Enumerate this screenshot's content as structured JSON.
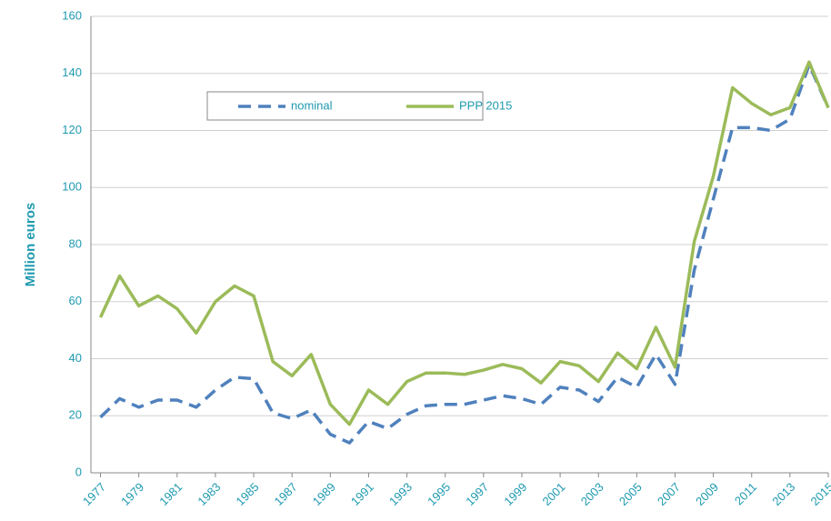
{
  "chart_data": {
    "type": "line",
    "y_label": "Million euros",
    "x": [
      1977,
      1978,
      1979,
      1980,
      1981,
      1982,
      1983,
      1984,
      1985,
      1986,
      1987,
      1988,
      1989,
      1990,
      1991,
      1992,
      1993,
      1994,
      1995,
      1996,
      1997,
      1998,
      1999,
      2000,
      2001,
      2002,
      2003,
      2004,
      2005,
      2006,
      2007,
      2008,
      2009,
      2010,
      2011,
      2012,
      2013,
      2014,
      2015
    ],
    "series": [
      {
        "name": "nominal",
        "color": "#4f81bd",
        "dashed": true,
        "values": [
          19.5,
          26,
          23,
          25.5,
          25.5,
          23,
          29,
          33.5,
          33,
          21,
          19,
          22,
          13.5,
          10.5,
          18,
          15.5,
          20.5,
          23.5,
          24,
          24,
          25.5,
          27,
          26,
          24,
          30,
          29,
          25,
          33.5,
          30,
          41.5,
          31,
          71,
          96,
          121,
          121,
          120,
          124,
          143,
          128
        ]
      },
      {
        "name": "PPP 2015",
        "color": "#9bbb59",
        "dashed": false,
        "values": [
          54.5,
          69,
          58.5,
          62,
          57.5,
          49,
          60,
          65.5,
          62,
          39,
          34,
          41.5,
          24,
          17,
          29,
          24,
          32,
          35,
          35,
          34.5,
          36,
          38,
          36.5,
          31.5,
          39,
          37.5,
          32,
          42,
          36.5,
          51,
          37,
          81,
          104,
          135,
          129.5,
          125.5,
          128,
          144,
          128
        ]
      }
    ],
    "xlim": [
      1976.5,
      2015
    ],
    "xticks": [
      1977,
      1979,
      1981,
      1983,
      1985,
      1987,
      1989,
      1991,
      1993,
      1995,
      1997,
      1999,
      2001,
      2003,
      2005,
      2007,
      2009,
      2011,
      2013,
      2015
    ],
    "ylim": [
      0,
      160
    ],
    "yticks": [
      0,
      20,
      40,
      60,
      80,
      100,
      120,
      140,
      160
    ],
    "grid": true
  }
}
